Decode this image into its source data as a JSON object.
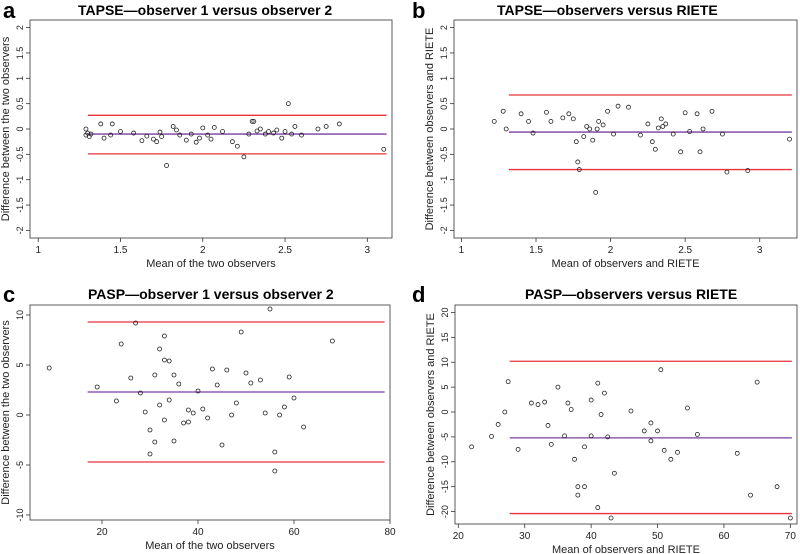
{
  "colors": {
    "limit_line": "#e8333a",
    "mean_line": "#7a3fa0",
    "point": "#222222",
    "axis": "#333333"
  },
  "chart_data": [
    {
      "type": "scatter",
      "panel_label": "a",
      "title": "TAPSE—observer 1 versus observer 2",
      "xlabel": "Mean of the two observers",
      "ylabel": "Difference between the two observers",
      "xlim": [
        0.95,
        3.15
      ],
      "ylim": [
        -2.15,
        2.15
      ],
      "xticks": [
        1,
        1.5,
        2,
        2.5,
        3
      ],
      "xtick_labels": [
        "1",
        "1.5",
        "2",
        "2.5",
        "3"
      ],
      "yticks": [
        -2,
        -1.5,
        -1,
        -0.5,
        0,
        0.5,
        1,
        1.5,
        2
      ],
      "ytick_labels": [
        "-2",
        "-1.5",
        "-1",
        "-0.5",
        "0",
        "0.5",
        "1",
        "1.5",
        "2"
      ],
      "mean_difference": -0.1,
      "upper_limit": 0.27,
      "lower_limit": -0.49,
      "points": [
        [
          1.29,
          0.0
        ],
        [
          1.29,
          -0.12
        ],
        [
          1.3,
          -0.08
        ],
        [
          1.31,
          -0.15
        ],
        [
          1.32,
          -0.1
        ],
        [
          1.38,
          0.1
        ],
        [
          1.4,
          -0.18
        ],
        [
          1.44,
          -0.12
        ],
        [
          1.45,
          0.1
        ],
        [
          1.5,
          -0.05
        ],
        [
          1.58,
          -0.08
        ],
        [
          1.63,
          -0.23
        ],
        [
          1.66,
          -0.14
        ],
        [
          1.7,
          -0.2
        ],
        [
          1.72,
          -0.25
        ],
        [
          1.74,
          -0.06
        ],
        [
          1.75,
          -0.15
        ],
        [
          1.78,
          -0.72
        ],
        [
          1.82,
          0.05
        ],
        [
          1.84,
          -0.02
        ],
        [
          1.86,
          -0.12
        ],
        [
          1.9,
          -0.22
        ],
        [
          1.93,
          -0.1
        ],
        [
          1.96,
          -0.26
        ],
        [
          1.98,
          -0.18
        ],
        [
          2.0,
          0.02
        ],
        [
          2.03,
          -0.12
        ],
        [
          2.05,
          -0.2
        ],
        [
          2.07,
          0.03
        ],
        [
          2.12,
          -0.05
        ],
        [
          2.18,
          -0.25
        ],
        [
          2.21,
          -0.34
        ],
        [
          2.25,
          -0.55
        ],
        [
          2.28,
          -0.1
        ],
        [
          2.3,
          0.15
        ],
        [
          2.31,
          0.15
        ],
        [
          2.33,
          -0.04
        ],
        [
          2.35,
          0.0
        ],
        [
          2.38,
          -0.1
        ],
        [
          2.4,
          -0.05
        ],
        [
          2.43,
          -0.08
        ],
        [
          2.45,
          -0.02
        ],
        [
          2.48,
          -0.18
        ],
        [
          2.5,
          -0.05
        ],
        [
          2.52,
          0.5
        ],
        [
          2.54,
          -0.1
        ],
        [
          2.56,
          0.05
        ],
        [
          2.6,
          -0.12
        ],
        [
          2.7,
          0.0
        ],
        [
          2.75,
          0.05
        ],
        [
          2.83,
          0.1
        ],
        [
          3.1,
          -0.4
        ]
      ]
    },
    {
      "type": "scatter",
      "panel_label": "b",
      "title": "TAPSE—observers versus RIETE",
      "xlabel": "Mean of observers and RIETE",
      "ylabel": "Difference between observers and RIETE",
      "xlim": [
        0.95,
        3.25
      ],
      "ylim": [
        -2.15,
        2.15
      ],
      "xticks": [
        1,
        1.5,
        2,
        2.5,
        3
      ],
      "xtick_labels": [
        "1",
        "1.5",
        "2",
        "2.5",
        "3"
      ],
      "yticks": [
        -2,
        -1.5,
        -1,
        -0.5,
        0,
        0.5,
        1,
        1.5,
        2
      ],
      "ytick_labels": [
        "-2",
        "-1.5",
        "-1",
        "-0.5",
        "0",
        "0.5",
        "1",
        "1.5",
        "2"
      ],
      "mean_difference": -0.06,
      "upper_limit": 0.67,
      "lower_limit": -0.8,
      "points": [
        [
          1.22,
          0.15
        ],
        [
          1.28,
          0.35
        ],
        [
          1.3,
          0.0
        ],
        [
          1.4,
          0.3
        ],
        [
          1.45,
          0.15
        ],
        [
          1.48,
          -0.08
        ],
        [
          1.57,
          0.33
        ],
        [
          1.6,
          0.15
        ],
        [
          1.68,
          0.22
        ],
        [
          1.72,
          0.3
        ],
        [
          1.75,
          0.2
        ],
        [
          1.77,
          -0.25
        ],
        [
          1.78,
          -0.65
        ],
        [
          1.79,
          -0.8
        ],
        [
          1.82,
          -0.15
        ],
        [
          1.84,
          0.05
        ],
        [
          1.86,
          0.0
        ],
        [
          1.88,
          -0.22
        ],
        [
          1.9,
          -1.25
        ],
        [
          1.91,
          0.0
        ],
        [
          1.92,
          0.15
        ],
        [
          1.95,
          0.08
        ],
        [
          1.98,
          0.35
        ],
        [
          2.02,
          -0.1
        ],
        [
          2.05,
          0.45
        ],
        [
          2.12,
          0.43
        ],
        [
          2.2,
          -0.12
        ],
        [
          2.25,
          0.1
        ],
        [
          2.28,
          -0.25
        ],
        [
          2.3,
          -0.4
        ],
        [
          2.32,
          0.02
        ],
        [
          2.34,
          0.2
        ],
        [
          2.35,
          0.05
        ],
        [
          2.37,
          0.1
        ],
        [
          2.42,
          -0.1
        ],
        [
          2.47,
          -0.45
        ],
        [
          2.5,
          0.32
        ],
        [
          2.53,
          -0.05
        ],
        [
          2.58,
          0.3
        ],
        [
          2.6,
          -0.45
        ],
        [
          2.62,
          0.0
        ],
        [
          2.68,
          0.35
        ],
        [
          2.75,
          -0.1
        ],
        [
          2.78,
          -0.85
        ],
        [
          2.92,
          -0.82
        ],
        [
          3.2,
          -0.2
        ]
      ]
    },
    {
      "type": "scatter",
      "panel_label": "c",
      "title": "PASP—observer 1 versus observer 2",
      "xlabel": "Mean of the two observers",
      "ylabel": "Difference between the two observers",
      "xlim": [
        5,
        80
      ],
      "ylim": [
        -10.5,
        11
      ],
      "xticks": [
        20,
        40,
        60,
        80
      ],
      "xtick_labels": [
        "20",
        "40",
        "60",
        "80"
      ],
      "yticks": [
        -10,
        -5,
        0,
        5,
        10
      ],
      "ytick_labels": [
        "-10",
        "-5",
        "0",
        "5",
        "10"
      ],
      "mean_difference": 2.3,
      "upper_limit": 9.3,
      "lower_limit": -4.7,
      "points": [
        [
          9,
          4.7
        ],
        [
          19,
          2.8
        ],
        [
          23,
          1.4
        ],
        [
          24,
          7.1
        ],
        [
          26,
          3.7
        ],
        [
          27,
          9.2
        ],
        [
          28,
          2.2
        ],
        [
          29,
          0.3
        ],
        [
          30,
          -3.9
        ],
        [
          30,
          -1.5
        ],
        [
          31,
          -2.7
        ],
        [
          31,
          4.0
        ],
        [
          32,
          6.6
        ],
        [
          32,
          1.0
        ],
        [
          33,
          7.9
        ],
        [
          33,
          5.5
        ],
        [
          33,
          -0.5
        ],
        [
          34,
          5.4
        ],
        [
          34,
          1.5
        ],
        [
          35,
          4.0
        ],
        [
          35,
          -2.6
        ],
        [
          36,
          3.1
        ],
        [
          37,
          -0.8
        ],
        [
          38,
          0.5
        ],
        [
          38,
          -0.7
        ],
        [
          39,
          0.2
        ],
        [
          40,
          2.4
        ],
        [
          41,
          0.6
        ],
        [
          42,
          -0.3
        ],
        [
          43,
          4.6
        ],
        [
          44,
          3.0
        ],
        [
          45,
          -3.0
        ],
        [
          46,
          4.5
        ],
        [
          47,
          0.0
        ],
        [
          48,
          1.2
        ],
        [
          49,
          8.3
        ],
        [
          50,
          4.2
        ],
        [
          51,
          3.2
        ],
        [
          53,
          3.5
        ],
        [
          54,
          0.2
        ],
        [
          55,
          10.6
        ],
        [
          56,
          -5.6
        ],
        [
          56,
          -3.7
        ],
        [
          57,
          0.0
        ],
        [
          58,
          0.8
        ],
        [
          59,
          3.8
        ],
        [
          60,
          1.7
        ],
        [
          62,
          -1.2
        ],
        [
          68,
          7.4
        ]
      ]
    },
    {
      "type": "scatter",
      "panel_label": "d",
      "title": "PASP—observers versus RIETE",
      "xlabel": "Mean of observers and RIETE",
      "ylabel": "Difference between observers and RIETE",
      "xlim": [
        19.5,
        71
      ],
      "ylim": [
        -22.5,
        21.5
      ],
      "xticks": [
        20,
        30,
        40,
        50,
        60,
        70
      ],
      "xtick_labels": [
        "20",
        "30",
        "40",
        "50",
        "60",
        "70"
      ],
      "yticks": [
        -20,
        -15,
        -10,
        -5,
        0,
        5,
        10,
        15,
        20
      ],
      "ytick_labels": [
        "-20",
        "-15",
        "-10",
        "-5",
        "0",
        "5",
        "10",
        "15",
        "20"
      ],
      "mean_difference": -5.2,
      "upper_limit": 10.2,
      "lower_limit": -20.4,
      "points": [
        [
          22,
          -7
        ],
        [
          25,
          -4.9
        ],
        [
          26,
          -2.5
        ],
        [
          27,
          0.0
        ],
        [
          27.5,
          6.1
        ],
        [
          29,
          -7.5
        ],
        [
          31,
          1.8
        ],
        [
          32,
          1.5
        ],
        [
          33,
          2
        ],
        [
          33.5,
          -2.7
        ],
        [
          34,
          -6.5
        ],
        [
          35,
          5
        ],
        [
          36,
          -4.8
        ],
        [
          36.5,
          1.8
        ],
        [
          37,
          0.5
        ],
        [
          37.5,
          -9.5
        ],
        [
          38,
          -15
        ],
        [
          38,
          -16.7
        ],
        [
          39,
          -7
        ],
        [
          39,
          -15
        ],
        [
          40,
          -4.8
        ],
        [
          40,
          2.4
        ],
        [
          41,
          -19.2
        ],
        [
          41,
          5.8
        ],
        [
          41.5,
          -0.5
        ],
        [
          42,
          3.8
        ],
        [
          42.5,
          -5
        ],
        [
          43,
          -21.3
        ],
        [
          43.5,
          -12.3
        ],
        [
          46,
          0.2
        ],
        [
          48,
          -3.8
        ],
        [
          49,
          -2.2
        ],
        [
          49,
          -5.8
        ],
        [
          50,
          -3.8
        ],
        [
          50.5,
          8.5
        ],
        [
          51,
          -7.7
        ],
        [
          52,
          -9.5
        ],
        [
          53,
          -8.1
        ],
        [
          54.5,
          0.8
        ],
        [
          56,
          -4.5
        ],
        [
          62,
          -8.3
        ],
        [
          64,
          -16.7
        ],
        [
          65,
          6
        ],
        [
          68,
          -15
        ],
        [
          70,
          -21.3
        ]
      ]
    }
  ]
}
